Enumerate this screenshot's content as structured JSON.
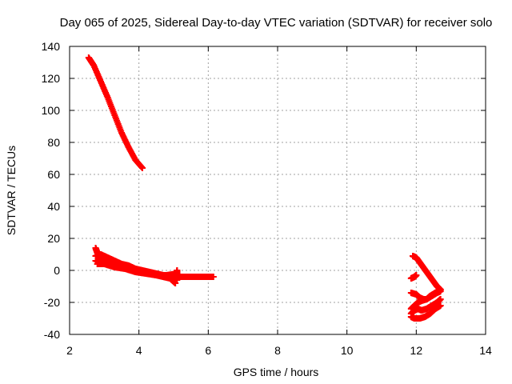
{
  "chart_data": {
    "type": "scatter",
    "title": "Day 065 of 2025, Sidereal Day-to-day VTEC variation (SDTVAR) for receiver solo",
    "xlabel": "GPS time / hours",
    "ylabel": "SDTVAR / TECUs",
    "xlim": [
      2,
      14
    ],
    "ylim": [
      -40,
      140
    ],
    "xticks": [
      2,
      4,
      6,
      8,
      10,
      12,
      14
    ],
    "yticks": [
      -40,
      -20,
      0,
      20,
      40,
      60,
      80,
      100,
      120,
      140
    ],
    "grid": true,
    "marker_color": "#ff0000",
    "series": [
      {
        "segments": [
          [
            [
              2.55,
              133
            ],
            [
              2.7,
              128
            ],
            [
              2.9,
              118
            ],
            [
              3.1,
              108
            ],
            [
              3.3,
              97
            ],
            [
              3.5,
              86
            ],
            [
              3.7,
              77
            ],
            [
              3.9,
              69
            ],
            [
              4.1,
              64
            ]
          ],
          [
            [
              2.75,
              14
            ],
            [
              2.8,
              11
            ],
            [
              2.85,
              9
            ],
            [
              2.9,
              8
            ],
            [
              3.0,
              7
            ],
            [
              3.2,
              5
            ],
            [
              3.4,
              4
            ],
            [
              3.6,
              2
            ],
            [
              3.8,
              1
            ],
            [
              4.0,
              0
            ],
            [
              4.2,
              -1
            ],
            [
              4.4,
              -2
            ],
            [
              4.6,
              -3
            ],
            [
              4.8,
              -4
            ],
            [
              5.0,
              -5
            ],
            [
              5.1,
              -6
            ]
          ],
          [
            [
              2.75,
              9
            ],
            [
              2.9,
              10
            ],
            [
              3.1,
              8
            ],
            [
              3.3,
              6
            ],
            [
              3.5,
              4
            ],
            [
              3.7,
              3
            ],
            [
              3.9,
              1
            ],
            [
              4.1,
              0
            ],
            [
              4.3,
              -1
            ],
            [
              4.5,
              -2
            ],
            [
              4.7,
              -3
            ],
            [
              4.9,
              -4
            ],
            [
              5.1,
              -4
            ],
            [
              5.4,
              -4
            ],
            [
              5.7,
              -4
            ],
            [
              6.0,
              -4
            ],
            [
              6.15,
              -4
            ]
          ],
          [
            [
              2.75,
              6
            ],
            [
              2.9,
              5
            ],
            [
              3.1,
              4
            ],
            [
              3.3,
              3
            ],
            [
              3.5,
              2
            ],
            [
              3.7,
              1
            ],
            [
              3.9,
              0
            ],
            [
              4.1,
              -1
            ],
            [
              4.3,
              -2
            ],
            [
              4.5,
              -3
            ],
            [
              4.7,
              -4
            ],
            [
              4.9,
              -5
            ],
            [
              5.05,
              -8
            ]
          ],
          [
            [
              2.8,
              4
            ],
            [
              3.0,
              4
            ],
            [
              3.3,
              2
            ],
            [
              3.6,
              1
            ],
            [
              3.9,
              -1
            ],
            [
              4.2,
              -2
            ],
            [
              4.5,
              -3
            ],
            [
              4.8,
              -3
            ],
            [
              5.1,
              -2
            ],
            [
              5.1,
              0
            ]
          ],
          [
            [
              11.9,
              9
            ],
            [
              12.0,
              8
            ],
            [
              12.1,
              5
            ],
            [
              12.2,
              2
            ],
            [
              12.3,
              -1
            ],
            [
              12.4,
              -4
            ],
            [
              12.5,
              -7
            ],
            [
              12.6,
              -10
            ],
            [
              12.7,
              -12
            ]
          ],
          [
            [
              11.85,
              -5
            ],
            [
              11.95,
              -4
            ],
            [
              12.0,
              -3
            ]
          ],
          [
            [
              11.85,
              -14
            ],
            [
              12.0,
              -15
            ],
            [
              12.1,
              -17
            ],
            [
              12.2,
              -18
            ],
            [
              12.3,
              -18
            ],
            [
              12.4,
              -16
            ],
            [
              12.55,
              -14
            ],
            [
              12.7,
              -12
            ]
          ],
          [
            [
              11.85,
              -24
            ],
            [
              11.95,
              -22
            ],
            [
              12.05,
              -20
            ],
            [
              12.15,
              -19
            ],
            [
              12.3,
              -18
            ],
            [
              12.45,
              -16
            ],
            [
              12.6,
              -14
            ],
            [
              12.7,
              -13
            ]
          ],
          [
            [
              11.85,
              -27
            ],
            [
              11.95,
              -25
            ],
            [
              12.05,
              -24
            ],
            [
              12.15,
              -25
            ],
            [
              12.3,
              -24
            ],
            [
              12.45,
              -22
            ],
            [
              12.6,
              -20
            ],
            [
              12.7,
              -18
            ]
          ],
          [
            [
              11.85,
              -29
            ],
            [
              11.95,
              -30
            ],
            [
              12.1,
              -30
            ],
            [
              12.25,
              -29
            ],
            [
              12.4,
              -27
            ],
            [
              12.55,
              -24
            ],
            [
              12.7,
              -22
            ]
          ]
        ]
      }
    ]
  }
}
